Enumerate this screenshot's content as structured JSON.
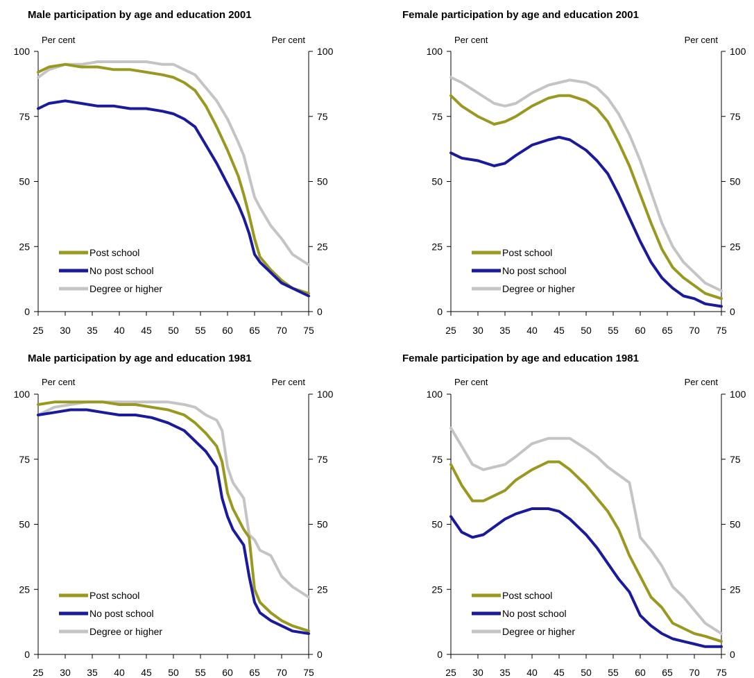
{
  "chart_data": [
    {
      "type": "line",
      "title": "Male participation by age and education 2001",
      "ylabel_left": "Per cent",
      "ylabel_right": "Per cent",
      "xlim": [
        25,
        75
      ],
      "ylim": [
        0,
        100
      ],
      "xticks": [
        25,
        30,
        35,
        40,
        45,
        50,
        55,
        60,
        65,
        70,
        75
      ],
      "yticks": [
        0,
        25,
        50,
        75,
        100
      ],
      "legend_position": "bottom-left",
      "series": [
        {
          "name": "Post school",
          "color": "#999922",
          "x": [
            25,
            27,
            30,
            33,
            36,
            39,
            42,
            45,
            48,
            50,
            52,
            54,
            56,
            58,
            60,
            62,
            63,
            64,
            65,
            66,
            68,
            70,
            72,
            75
          ],
          "y": [
            92,
            94,
            95,
            94,
            94,
            93,
            93,
            92,
            91,
            90,
            88,
            85,
            79,
            71,
            62,
            52,
            45,
            37,
            28,
            21,
            16,
            12,
            9,
            7
          ]
        },
        {
          "name": "No post school",
          "color": "#1a1a9c",
          "x": [
            25,
            27,
            30,
            33,
            36,
            39,
            42,
            45,
            48,
            50,
            52,
            54,
            56,
            58,
            60,
            62,
            63,
            64,
            65,
            66,
            68,
            70,
            72,
            75
          ],
          "y": [
            78,
            80,
            81,
            80,
            79,
            79,
            78,
            78,
            77,
            76,
            74,
            71,
            64,
            57,
            49,
            41,
            36,
            30,
            22,
            19,
            15,
            11,
            9,
            6
          ]
        },
        {
          "name": "Degree or higher",
          "color": "#c4c4c4",
          "x": [
            25,
            27,
            30,
            33,
            36,
            39,
            42,
            45,
            48,
            50,
            52,
            54,
            56,
            58,
            60,
            62,
            63,
            64,
            65,
            66,
            68,
            70,
            72,
            75
          ],
          "y": [
            90,
            93,
            95,
            95,
            96,
            96,
            96,
            96,
            95,
            95,
            93,
            91,
            86,
            81,
            74,
            65,
            60,
            52,
            44,
            40,
            33,
            28,
            22,
            18
          ]
        }
      ]
    },
    {
      "type": "line",
      "title": "Female participation by age and education 2001",
      "ylabel_left": "Per cent",
      "ylabel_right": "Per cent",
      "xlim": [
        25,
        75
      ],
      "ylim": [
        0,
        100
      ],
      "xticks": [
        25,
        30,
        35,
        40,
        45,
        50,
        55,
        60,
        65,
        70,
        75
      ],
      "yticks": [
        0,
        25,
        50,
        75,
        100
      ],
      "legend_position": "bottom-left",
      "series": [
        {
          "name": "Post school",
          "color": "#999922",
          "x": [
            25,
            27,
            30,
            33,
            35,
            37,
            40,
            43,
            45,
            47,
            50,
            52,
            54,
            56,
            58,
            60,
            62,
            64,
            66,
            68,
            70,
            72,
            75
          ],
          "y": [
            83,
            79,
            75,
            72,
            73,
            75,
            79,
            82,
            83,
            83,
            81,
            78,
            73,
            65,
            56,
            45,
            34,
            24,
            17,
            13,
            10,
            7,
            5
          ]
        },
        {
          "name": "No post school",
          "color": "#1a1a9c",
          "x": [
            25,
            27,
            30,
            33,
            35,
            37,
            40,
            43,
            45,
            47,
            50,
            52,
            54,
            56,
            58,
            60,
            62,
            64,
            66,
            68,
            70,
            72,
            75
          ],
          "y": [
            61,
            59,
            58,
            56,
            57,
            60,
            64,
            66,
            67,
            66,
            62,
            58,
            53,
            45,
            36,
            27,
            19,
            13,
            9,
            6,
            5,
            3,
            2
          ]
        },
        {
          "name": "Degree or higher",
          "color": "#c4c4c4",
          "x": [
            25,
            27,
            30,
            33,
            35,
            37,
            40,
            43,
            45,
            47,
            50,
            52,
            54,
            56,
            58,
            60,
            62,
            64,
            66,
            68,
            70,
            72,
            75
          ],
          "y": [
            90,
            88,
            84,
            80,
            79,
            80,
            84,
            87,
            88,
            89,
            88,
            86,
            82,
            76,
            68,
            58,
            46,
            34,
            25,
            19,
            15,
            11,
            8
          ]
        }
      ]
    },
    {
      "type": "line",
      "title": "Male participation by age and education 1981",
      "ylabel_left": "Per cent",
      "ylabel_right": "Per cent",
      "xlim": [
        25,
        75
      ],
      "ylim": [
        0,
        100
      ],
      "xticks": [
        25,
        30,
        35,
        40,
        45,
        50,
        55,
        60,
        65,
        70,
        75
      ],
      "yticks": [
        0,
        25,
        50,
        75,
        100
      ],
      "legend_position": "bottom-left",
      "series": [
        {
          "name": "Post school",
          "color": "#999922",
          "x": [
            25,
            28,
            31,
            34,
            37,
            40,
            43,
            46,
            49,
            52,
            54,
            56,
            58,
            59,
            60,
            61,
            62,
            63,
            64,
            65,
            66,
            68,
            70,
            72,
            75
          ],
          "y": [
            96,
            97,
            97,
            97,
            97,
            96,
            96,
            95,
            94,
            92,
            89,
            85,
            80,
            74,
            62,
            56,
            52,
            48,
            45,
            25,
            20,
            16,
            13,
            11,
            9
          ]
        },
        {
          "name": "No post school",
          "color": "#1a1a9c",
          "x": [
            25,
            28,
            31,
            34,
            37,
            40,
            43,
            46,
            49,
            52,
            54,
            56,
            58,
            59,
            60,
            61,
            62,
            63,
            64,
            65,
            66,
            68,
            70,
            72,
            75
          ],
          "y": [
            92,
            93,
            94,
            94,
            93,
            92,
            92,
            91,
            89,
            86,
            82,
            78,
            72,
            60,
            53,
            48,
            45,
            42,
            30,
            20,
            16,
            13,
            11,
            9,
            8
          ]
        },
        {
          "name": "Degree or higher",
          "color": "#c4c4c4",
          "x": [
            25,
            28,
            31,
            34,
            37,
            40,
            43,
            46,
            49,
            52,
            54,
            56,
            58,
            59,
            60,
            61,
            62,
            63,
            64,
            65,
            66,
            68,
            70,
            72,
            75
          ],
          "y": [
            92,
            95,
            96,
            97,
            97,
            97,
            97,
            97,
            97,
            96,
            95,
            92,
            90,
            86,
            72,
            66,
            63,
            60,
            46,
            44,
            40,
            38,
            30,
            26,
            22
          ]
        }
      ]
    },
    {
      "type": "line",
      "title": "Female participation by age and education 1981",
      "ylabel_left": "Per cent",
      "ylabel_right": "Per cent",
      "xlim": [
        25,
        75
      ],
      "ylim": [
        0,
        100
      ],
      "xticks": [
        25,
        30,
        35,
        40,
        45,
        50,
        55,
        60,
        65,
        70,
        75
      ],
      "yticks": [
        0,
        25,
        50,
        75,
        100
      ],
      "legend_position": "bottom-left",
      "series": [
        {
          "name": "Post school",
          "color": "#999922",
          "x": [
            25,
            27,
            29,
            31,
            33,
            35,
            37,
            40,
            43,
            45,
            47,
            50,
            52,
            54,
            56,
            58,
            60,
            62,
            64,
            66,
            68,
            70,
            72,
            75
          ],
          "y": [
            73,
            65,
            59,
            59,
            61,
            63,
            67,
            71,
            74,
            74,
            71,
            65,
            60,
            55,
            48,
            38,
            30,
            22,
            18,
            12,
            10,
            8,
            7,
            5
          ]
        },
        {
          "name": "No post school",
          "color": "#1a1a9c",
          "x": [
            25,
            27,
            29,
            31,
            33,
            35,
            37,
            40,
            43,
            45,
            47,
            50,
            52,
            54,
            56,
            58,
            60,
            62,
            64,
            66,
            68,
            70,
            72,
            75
          ],
          "y": [
            53,
            47,
            45,
            46,
            49,
            52,
            54,
            56,
            56,
            55,
            52,
            46,
            41,
            35,
            29,
            24,
            15,
            11,
            8,
            6,
            5,
            4,
            3,
            3
          ]
        },
        {
          "name": "Degree or higher",
          "color": "#c4c4c4",
          "x": [
            25,
            27,
            29,
            31,
            33,
            35,
            37,
            40,
            43,
            45,
            47,
            50,
            52,
            54,
            56,
            58,
            60,
            62,
            64,
            66,
            68,
            70,
            72,
            75
          ],
          "y": [
            87,
            80,
            73,
            71,
            72,
            73,
            76,
            81,
            83,
            83,
            83,
            79,
            76,
            72,
            69,
            66,
            45,
            40,
            34,
            26,
            22,
            17,
            12,
            8
          ]
        }
      ]
    }
  ]
}
